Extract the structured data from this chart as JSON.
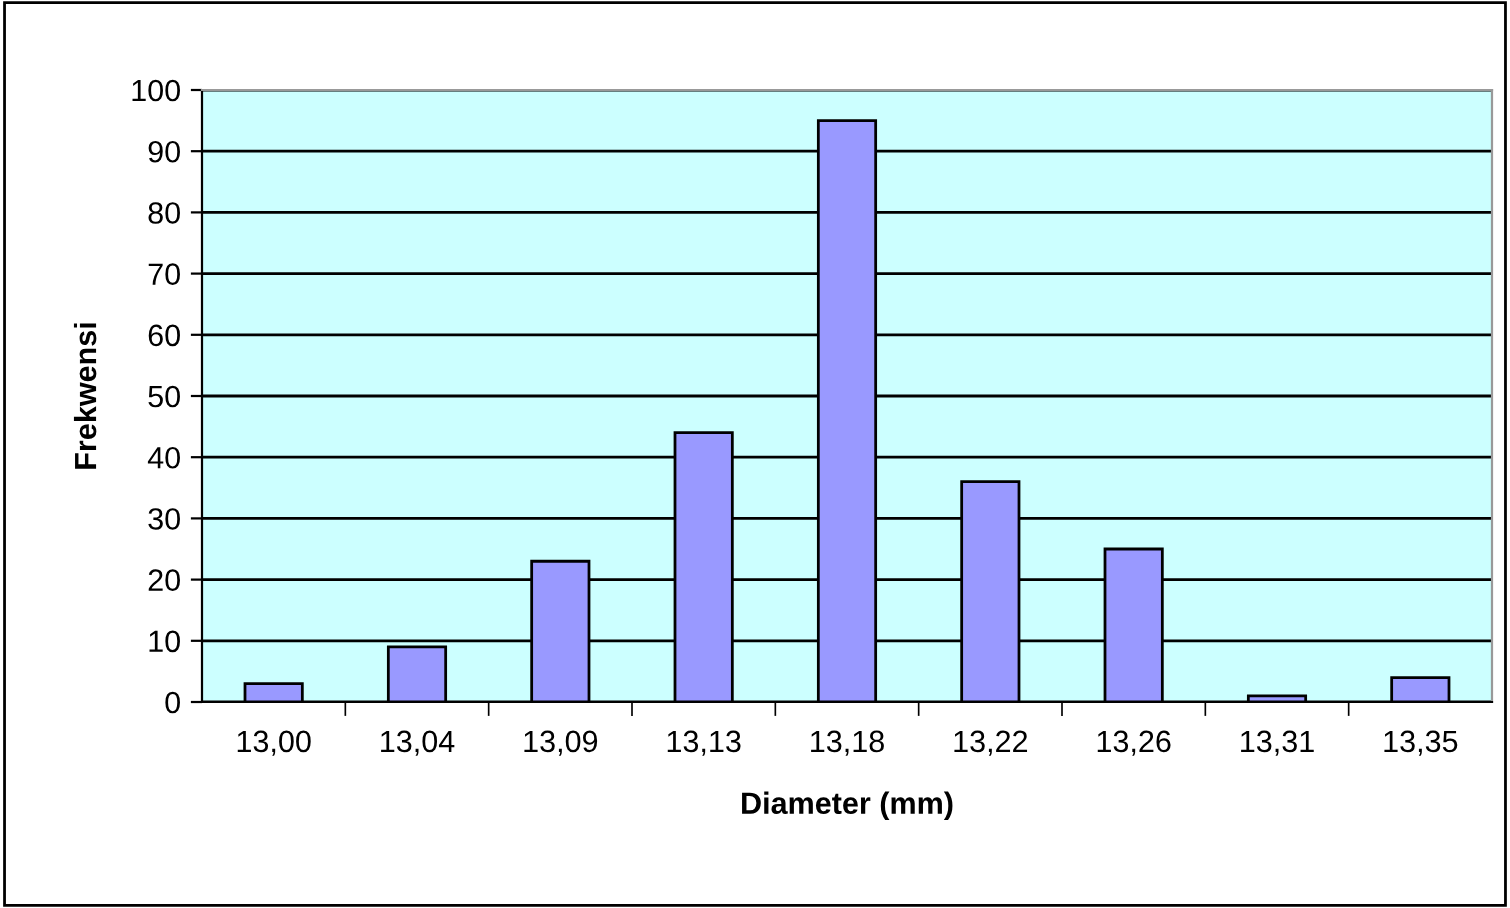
{
  "chart_data": {
    "type": "bar",
    "xlabel": "Diameter (mm)",
    "ylabel": "Frekwensi",
    "categories": [
      "13,00",
      "13,04",
      "13,09",
      "13,13",
      "13,18",
      "13,22",
      "13,26",
      "13,31",
      "13,35"
    ],
    "values": [
      3,
      9,
      23,
      44,
      95,
      36,
      25,
      1,
      4
    ],
    "color": "#9999ff",
    "ylim": [
      0,
      100
    ],
    "yticks": [
      0,
      10,
      20,
      30,
      40,
      50,
      60,
      70,
      80,
      90,
      100
    ],
    "grid": "y"
  }
}
